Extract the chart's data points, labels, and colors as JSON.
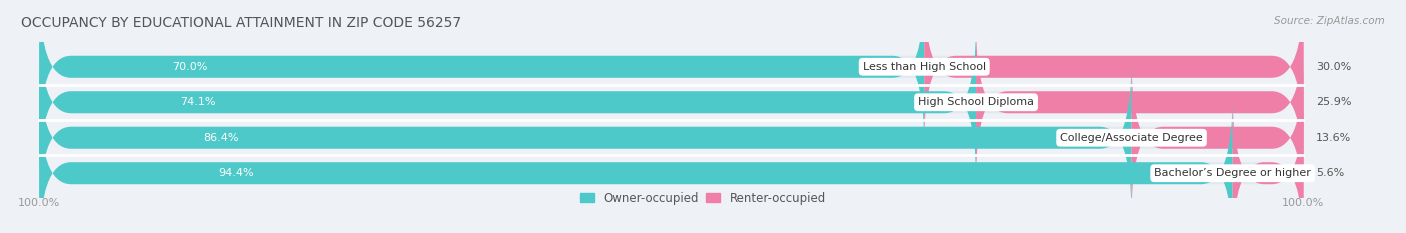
{
  "title": "OCCUPANCY BY EDUCATIONAL ATTAINMENT IN ZIP CODE 56257",
  "source": "Source: ZipAtlas.com",
  "categories": [
    "Less than High School",
    "High School Diploma",
    "College/Associate Degree",
    "Bachelor’s Degree or higher"
  ],
  "owner_values": [
    70.0,
    74.1,
    86.4,
    94.4
  ],
  "renter_values": [
    30.0,
    25.9,
    13.6,
    5.6
  ],
  "owner_color": "#4ec9c9",
  "renter_color": "#f07fa8",
  "background_color": "#eef2f6",
  "bar_bg_color": "#e2e8f0",
  "title_fontsize": 10,
  "label_fontsize": 8,
  "value_fontsize": 8,
  "legend_owner": "Owner-occupied",
  "legend_renter": "Renter-occupied",
  "left_axis_label": "100.0%",
  "right_axis_label": "100.0%"
}
